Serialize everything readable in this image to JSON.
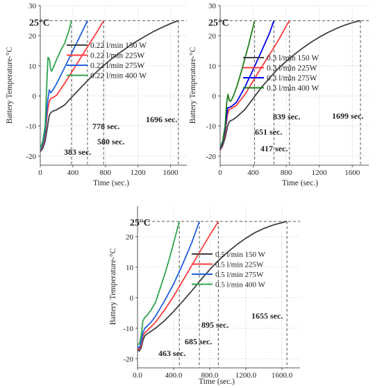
{
  "figure": {
    "reference_label": "25°C",
    "ylabel": "Battery Temperature-°C",
    "colors": {
      "150": "#404040",
      "225": "#ff3b3b",
      "275": "#1f5fe0",
      "400": "#2ea44f",
      "grid": "#d7d7d7",
      "refline": "#555555"
    }
  },
  "chart_data": [
    {
      "type": "line",
      "xlabel": "Time (sec.)",
      "ylabel": "Battery Temperature-°C",
      "xlim": [
        0,
        1800
      ],
      "ylim": [
        -23,
        30
      ],
      "xticks": [
        "0",
        "400",
        "800",
        "1200",
        "1600"
      ],
      "xtick_values": [
        0,
        400,
        800,
        1200,
        1600
      ],
      "yticks": [
        -20,
        -10,
        0,
        10,
        20,
        30
      ],
      "ytick_labels": [
        "-20",
        "-10",
        "0",
        "10",
        "20",
        "30"
      ],
      "reference_y": 25,
      "reference_label": "25°C",
      "series": [
        {
          "name": "0.22 l/min 150 W",
          "color": "#404040",
          "x": [
            0,
            30,
            60,
            90,
            110,
            130,
            160,
            200,
            300,
            400,
            500,
            600,
            700,
            800,
            900,
            1000,
            1100,
            1200,
            1300,
            1400,
            1500,
            1600,
            1696
          ],
          "y": [
            -18.5,
            -17.5,
            -15,
            -10,
            -6.5,
            -5.5,
            -5,
            -4.6,
            -3,
            0,
            2.8,
            5.6,
            8.2,
            10.6,
            12.8,
            14.8,
            16.7,
            18.4,
            20,
            21.5,
            22.8,
            24,
            25
          ]
        },
        {
          "name": "0.22 l/min 225W",
          "color": "#ff3b3b",
          "x": [
            0,
            30,
            60,
            90,
            110,
            130,
            160,
            200,
            300,
            400,
            500,
            600,
            700,
            778
          ],
          "y": [
            -18.2,
            -16.5,
            -13,
            -5,
            -1.8,
            -0.8,
            -0.5,
            0.2,
            4.2,
            8.5,
            12.8,
            17.1,
            21.4,
            25
          ]
        },
        {
          "name": "0.22 l/min 275W",
          "color": "#1f5fe0",
          "x": [
            0,
            30,
            60,
            90,
            110,
            130,
            160,
            200,
            300,
            400,
            500,
            580
          ],
          "y": [
            -18,
            -16,
            -12,
            -2,
            2,
            1,
            2.2,
            4,
            9.5,
            15,
            20.5,
            25
          ]
        },
        {
          "name": "0.22 l/min 400 W",
          "color": "#2ea44f",
          "x": [
            0,
            30,
            60,
            80,
            95,
            105,
            115,
            125,
            140,
            160,
            200,
            250,
            300,
            330,
            350,
            383
          ],
          "y": [
            -17.5,
            -15,
            -10,
            4,
            12.8,
            12.5,
            11.8,
            9,
            8.2,
            9.5,
            12,
            15,
            17.5,
            20,
            21.5,
            25
          ]
        }
      ],
      "annotations": [
        "383 sec.",
        "580 sec.",
        "778 sec.",
        "1696 sec."
      ],
      "annotation_x": [
        383,
        580,
        778,
        1696
      ],
      "legend": "top-left"
    },
    {
      "type": "line",
      "xlabel": "Time (sec.)",
      "ylabel": "Battery Temperature-°C",
      "xlim": [
        0,
        1800
      ],
      "ylim": [
        -23,
        30
      ],
      "xticks": [
        "0",
        "400",
        "800",
        "1200",
        "1600"
      ],
      "xtick_values": [
        0,
        400,
        800,
        1200,
        1600
      ],
      "yticks": [
        -20,
        -10,
        0,
        10,
        20,
        30
      ],
      "ytick_labels": [
        "-20",
        "-10",
        "0",
        "10",
        "20",
        "30"
      ],
      "reference_y": 25,
      "reference_label": "25°C",
      "series": [
        {
          "name": "0.3 l/min 150 W",
          "color": "#404040",
          "x": [
            0,
            30,
            60,
            90,
            110,
            130,
            160,
            200,
            300,
            400,
            500,
            600,
            700,
            800,
            900,
            1000,
            1100,
            1200,
            1300,
            1400,
            1500,
            1600,
            1699
          ],
          "y": [
            -18,
            -16.5,
            -14,
            -10,
            -8.5,
            -8.2,
            -7.8,
            -7,
            -4.5,
            -0.8,
            2.8,
            6,
            9,
            11.5,
            13.8,
            15.9,
            17.8,
            19.5,
            21,
            22.3,
            23.4,
            24.3,
            25
          ]
        },
        {
          "name": "0.3 l/min 225W",
          "color": "#ff3b3b",
          "x": [
            0,
            30,
            60,
            90,
            110,
            130,
            160,
            200,
            300,
            400,
            500,
            600,
            700,
            800,
            839
          ],
          "y": [
            -17.8,
            -16,
            -12,
            -6,
            -4.5,
            -4.2,
            -3.8,
            -3,
            0.5,
            5,
            9.5,
            13.8,
            18.2,
            23.2,
            25
          ]
        },
        {
          "name": "0.3 l/min 275W",
          "color": "#0000ee",
          "x": [
            0,
            30,
            60,
            90,
            110,
            130,
            160,
            200,
            300,
            400,
            500,
            600,
            651
          ],
          "y": [
            -17.5,
            -15.5,
            -11,
            -4,
            -3.8,
            -3.6,
            -3,
            -2,
            3,
            8.8,
            14.8,
            21,
            25
          ]
        },
        {
          "name": "0.3 l/min 400 W",
          "color": "#1b7f1b",
          "x": [
            0,
            30,
            60,
            80,
            95,
            110,
            125,
            140,
            160,
            200,
            250,
            300,
            350,
            417
          ],
          "y": [
            -17.2,
            -15,
            -10,
            -2,
            0.5,
            -1.5,
            -1.8,
            -1.2,
            0,
            3,
            7.5,
            12.5,
            17.5,
            25
          ]
        }
      ],
      "annotations": [
        "417 sec.",
        "651 sec.",
        "839 sec.",
        "1699 sec."
      ],
      "annotation_x": [
        417,
        651,
        839,
        1699
      ],
      "legend": "top-left"
    },
    {
      "type": "line",
      "xlabel": "Time (sec.)",
      "ylabel": "Battery Temperature-°C",
      "xlim": [
        0,
        1800
      ],
      "ylim": [
        -23,
        30
      ],
      "xticks": [
        "0.0",
        "400.0",
        "800.0",
        "1200.0",
        "1600.0"
      ],
      "xtick_values": [
        0,
        400,
        800,
        1200,
        1600
      ],
      "yticks": [
        -20,
        -10,
        0,
        10,
        20
      ],
      "ytick_labels": [
        "-20",
        "-10",
        "0",
        "10",
        "20"
      ],
      "reference_y": 25,
      "reference_label": "25°C",
      "series": [
        {
          "name": "0.5 l/min 150 W",
          "color": "#404040",
          "x": [
            0,
            20,
            40,
            60,
            80,
            100,
            150,
            200,
            300,
            400,
            500,
            600,
            700,
            800,
            900,
            1000,
            1100,
            1200,
            1300,
            1400,
            1500,
            1600,
            1655
          ],
          "y": [
            -17,
            -17.5,
            -16.5,
            -14,
            -12.5,
            -12,
            -11,
            -10,
            -7.5,
            -4.5,
            -1.2,
            2.2,
            5.8,
            9.2,
            12.3,
            15,
            17.4,
            19.5,
            21.3,
            22.7,
            23.8,
            24.6,
            25
          ]
        },
        {
          "name": "0.5 l/min 225W",
          "color": "#ff3b3b",
          "x": [
            0,
            20,
            40,
            60,
            80,
            100,
            150,
            200,
            300,
            400,
            500,
            600,
            700,
            800,
            895
          ],
          "y": [
            -16.5,
            -17,
            -15.5,
            -12.5,
            -11.5,
            -11,
            -9.5,
            -8,
            -4,
            0.5,
            5.5,
            10.5,
            15.5,
            20.5,
            25
          ]
        },
        {
          "name": "0.5 l/min 275W",
          "color": "#1f5fe0",
          "x": [
            0,
            20,
            40,
            60,
            80,
            100,
            150,
            200,
            300,
            400,
            500,
            600,
            685
          ],
          "y": [
            -16,
            -16.5,
            -14.5,
            -11.5,
            -10,
            -9.5,
            -8,
            -6,
            -1,
            4.5,
            11,
            18,
            25
          ]
        },
        {
          "name": "0.5 l/min 400 W",
          "color": "#2ea44f",
          "x": [
            0,
            20,
            40,
            60,
            80,
            100,
            150,
            200,
            250,
            300,
            350,
            400,
            463
          ],
          "y": [
            -15.5,
            -15,
            -12.5,
            -7.5,
            -6.5,
            -6,
            -4,
            -1.5,
            3,
            7.5,
            12.5,
            18,
            25
          ]
        }
      ],
      "annotations": [
        "463 sec.",
        "685 sec.",
        "895 sec.",
        "1655 sec."
      ],
      "annotation_x": [
        463,
        685,
        895,
        1655
      ],
      "legend": "center-right"
    }
  ]
}
